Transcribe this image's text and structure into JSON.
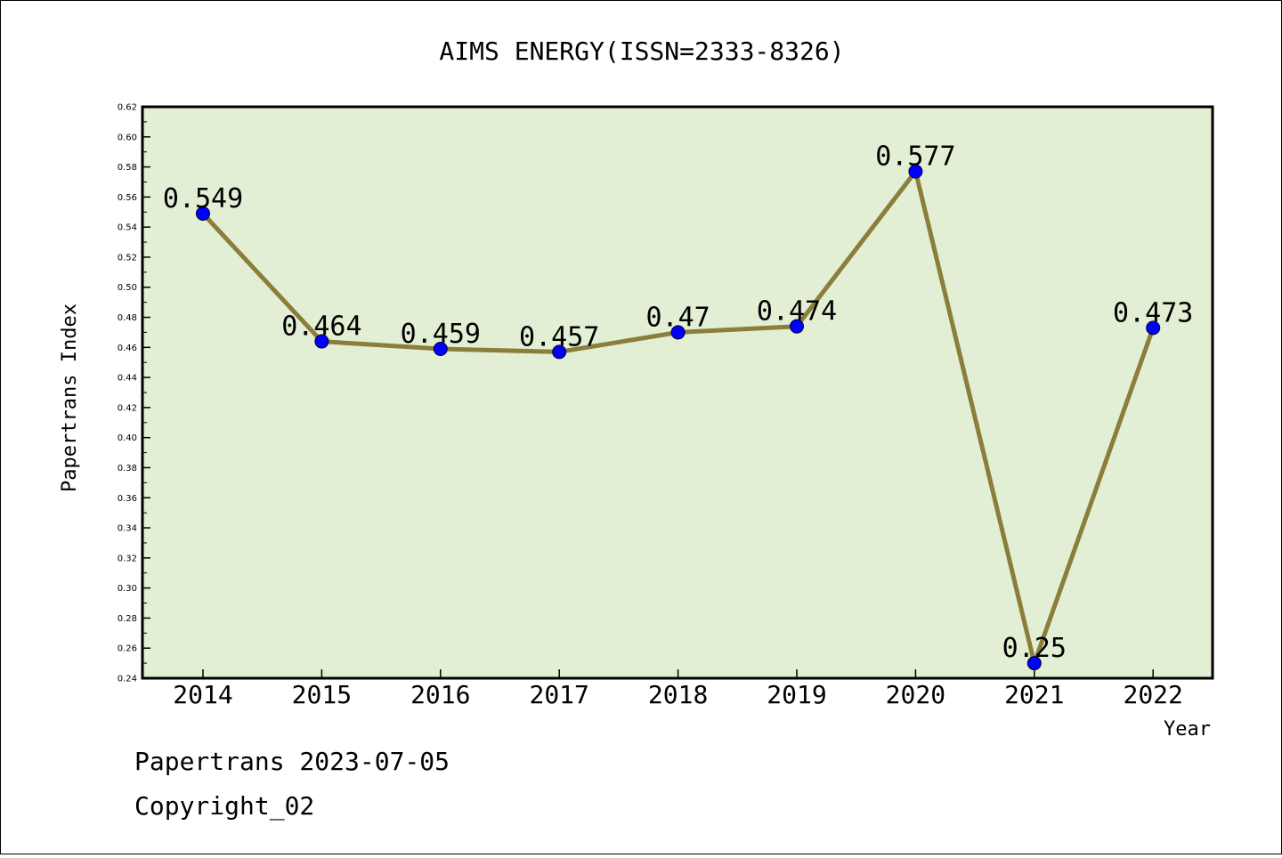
{
  "chart_data": {
    "type": "line",
    "title": "AIMS ENERGY(ISSN=2333-8326)",
    "xlabel": "Year",
    "ylabel": "Papertrans Index",
    "x": [
      "2014",
      "2015",
      "2016",
      "2017",
      "2018",
      "2019",
      "2020",
      "2021",
      "2022"
    ],
    "series": [
      {
        "values": [
          0.549,
          0.464,
          0.459,
          0.457,
          0.47,
          0.474,
          0.577,
          0.25,
          0.473
        ],
        "labels": [
          "0.549",
          "0.464",
          "0.459",
          "0.457",
          "0.47",
          "0.474",
          "0.577",
          "0.25",
          "0.473"
        ]
      }
    ],
    "ylim": [
      0.24,
      0.62
    ],
    "yticks": [
      "0.24",
      "0.26",
      "0.28",
      "0.30",
      "0.32",
      "0.34",
      "0.36",
      "0.38",
      "0.40",
      "0.42",
      "0.44",
      "0.46",
      "0.48",
      "0.50",
      "0.52",
      "0.54",
      "0.56",
      "0.58",
      "0.60",
      "0.62"
    ],
    "grid": false,
    "legend": "none",
    "colors": {
      "plot_background": "#e2efd5",
      "line": "#8b7d3a",
      "marker": "#0000ff"
    }
  },
  "footer": {
    "date_line": "Papertrans 2023-07-05",
    "copyright": "Copyright_02"
  }
}
